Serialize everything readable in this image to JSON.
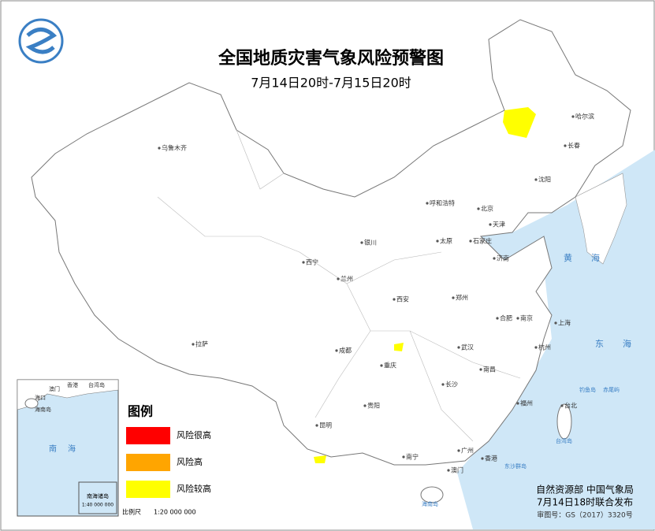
{
  "header": {
    "title": "全国地质灾害气象风险预警图",
    "subtitle": "7月14日20时-7月15日20时"
  },
  "legend": {
    "title": "图例",
    "items": [
      {
        "label": "风险很高",
        "color": "#ff0000"
      },
      {
        "label": "风险高",
        "color": "#ffa500"
      },
      {
        "label": "风险较高",
        "color": "#ffff00"
      }
    ]
  },
  "cities": [
    "乌鲁木齐",
    "哈尔滨",
    "长春",
    "沈阳",
    "呼和浩特",
    "北京",
    "天津",
    "银川",
    "太原",
    "石家庄",
    "济南",
    "西宁",
    "兰州",
    "西安",
    "郑州",
    "合肥",
    "南京",
    "上海",
    "拉萨",
    "成都",
    "重庆",
    "武汉",
    "杭州",
    "长沙",
    "南昌",
    "贵阳",
    "福州",
    "台北",
    "昆明",
    "南宁",
    "广州",
    "香港",
    "澳门"
  ],
  "seas": [
    "黄海",
    "东海"
  ],
  "islands": [
    "钓鱼岛",
    "赤尾屿",
    "台湾岛",
    "东沙群岛",
    "海南岛"
  ],
  "inset": {
    "labels": [
      "香港",
      "澳门",
      "台湾岛",
      "海口",
      "海南岛"
    ],
    "sea": "南海",
    "title": "南海诸岛",
    "scale": "1:40 000 000"
  },
  "scale": {
    "label": "比例尺",
    "value": "1:20 000 000"
  },
  "footer": {
    "publisher": "自然资源部 中国气象局",
    "date": "7月14日18时联合发布",
    "review": "审图号：GS（2017）3320号"
  }
}
